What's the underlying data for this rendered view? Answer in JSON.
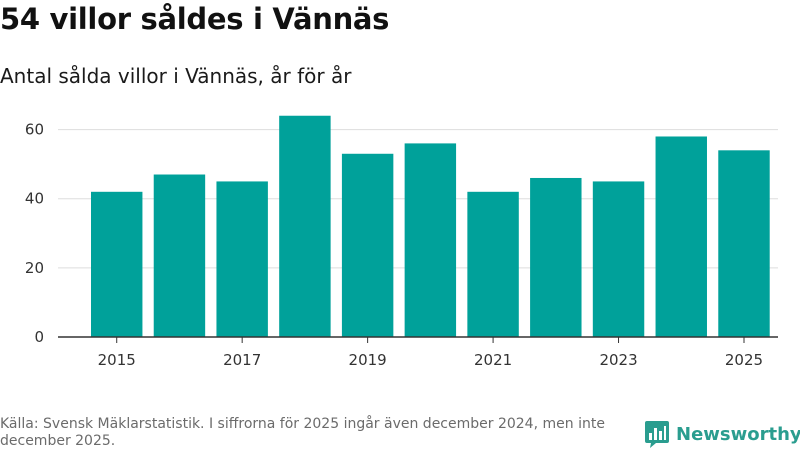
{
  "header": {
    "title": "54 villor såldes i Vännäs",
    "subtitle": "Antal sålda villor i Vännäs, år för år"
  },
  "footer": {
    "source": "Källa: Svensk Mäklarstatistik. I siffrorna för 2025 ingår även december 2024, men inte december 2025."
  },
  "brand": {
    "name": "Newsworthy",
    "logo_icon": "bar-chart-logo-icon"
  },
  "colors": {
    "bar": "#00a19a",
    "grid": "#dddddd",
    "axis": "#333333",
    "brand": "#2a9d8f"
  },
  "chart_data": {
    "type": "bar",
    "title": "54 villor såldes i Vännäs",
    "subtitle": "Antal sålda villor i Vännäs, år för år",
    "categories": [
      "2015",
      "2016",
      "2017",
      "2018",
      "2019",
      "2020",
      "2021",
      "2022",
      "2023",
      "2024",
      "2025"
    ],
    "values": [
      42,
      47,
      45,
      64,
      53,
      56,
      42,
      46,
      45,
      58,
      54
    ],
    "x_tick_labels": [
      "2015",
      "2017",
      "2019",
      "2021",
      "2023",
      "2025"
    ],
    "y_ticks": [
      0,
      20,
      40,
      60
    ],
    "ylim": [
      0,
      70
    ],
    "xlabel": "",
    "ylabel": "",
    "grid": true,
    "legend": "none"
  }
}
